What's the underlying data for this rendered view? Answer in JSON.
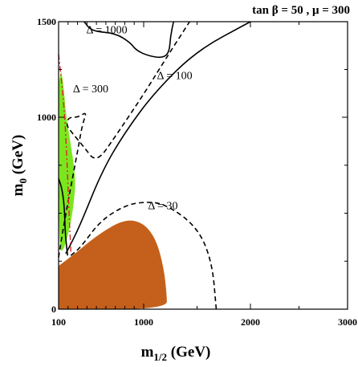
{
  "chart_data": {
    "type": "contour",
    "title": "tan β = 50 ,  μ = 300",
    "xlabel": "m1/2 (GeV)",
    "ylabel": "m0 (GeV)",
    "x_ticks": [
      {
        "value": 100,
        "label": "100"
      },
      {
        "value": 1000,
        "label": "1000"
      },
      {
        "value": 2000,
        "label": "2000"
      },
      {
        "value": 3000,
        "label": "3000"
      }
    ],
    "y_ticks": [
      {
        "value": 0,
        "label": "0"
      },
      {
        "value": 1000,
        "label": "1000"
      },
      {
        "value": 1500,
        "label": "1500"
      }
    ],
    "xlim": [
      100,
      3000
    ],
    "ylim": [
      0,
      1500
    ],
    "x_scale": "log-like (100 at left edge)",
    "regions": [
      {
        "name": "green-region",
        "color": "#7be61e",
        "points": [
          [
            127,
            1240
          ],
          [
            150,
            1180
          ],
          [
            180,
            1000
          ],
          [
            225,
            870
          ],
          [
            265,
            740
          ],
          [
            280,
            640
          ],
          [
            240,
            470
          ],
          [
            155,
            300
          ],
          [
            100,
            310
          ],
          [
            100,
            1180
          ]
        ]
      },
      {
        "name": "orange-region",
        "color": "#c4601b",
        "points": [
          [
            100,
            225
          ],
          [
            300,
            300
          ],
          [
            520,
            390
          ],
          [
            800,
            470
          ],
          [
            1000,
            450
          ],
          [
            1120,
            360
          ],
          [
            1190,
            210
          ],
          [
            1215,
            80
          ],
          [
            1220,
            0
          ],
          [
            100,
            0
          ]
        ]
      }
    ],
    "contours": [
      {
        "label": "Δ = 30",
        "style": "dashed",
        "points": [
          [
            230,
            280
          ],
          [
            330,
            320
          ],
          [
            540,
            460
          ],
          [
            800,
            540
          ],
          [
            1000,
            560
          ],
          [
            1200,
            550
          ],
          [
            1500,
            430
          ],
          [
            1640,
            250
          ],
          [
            1680,
            0
          ]
        ]
      },
      {
        "label": "Δ = 100",
        "style": "solid",
        "points": [
          [
            175,
            290
          ],
          [
            210,
            320
          ],
          [
            330,
            440
          ],
          [
            560,
            720
          ],
          [
            800,
            920
          ],
          [
            1100,
            1130
          ],
          [
            1500,
            1350
          ],
          [
            2000,
            1500
          ]
        ]
      },
      {
        "label": "Δ = 300",
        "style": "dashed",
        "points": [
          [
            100,
            270
          ],
          [
            165,
            470
          ],
          [
            300,
            820
          ],
          [
            350,
            960
          ],
          [
            400,
            1030
          ],
          [
            310,
            1000
          ],
          [
            205,
            1000
          ],
          [
            180,
            960
          ],
          [
            240,
            920
          ],
          [
            360,
            850
          ],
          [
            500,
            760
          ],
          [
            700,
            900
          ],
          [
            1000,
            1120
          ],
          [
            1200,
            1300
          ],
          [
            1430,
            1500
          ]
        ]
      },
      {
        "label": "Δ = 1000",
        "style": "solid",
        "points": [
          [
            370,
            1500
          ],
          [
            450,
            1450
          ],
          [
            700,
            1440
          ],
          [
            860,
            1390
          ],
          [
            920,
            1350
          ],
          [
            1050,
            1320
          ],
          [
            1180,
            1310
          ],
          [
            1240,
            1340
          ],
          [
            1250,
            1420
          ],
          [
            1280,
            1500
          ]
        ]
      },
      {
        "label": "",
        "style": "solid",
        "points": [
          [
            100,
            680
          ],
          [
            135,
            630
          ],
          [
            160,
            540
          ],
          [
            170,
            400
          ],
          [
            185,
            325
          ],
          [
            195,
            280
          ]
        ]
      },
      {
        "label": "",
        "style": "dash-dot",
        "color": "#e0202f",
        "points": [
          [
            100,
            1330
          ],
          [
            120,
            1240
          ],
          [
            150,
            1100
          ],
          [
            175,
            920
          ],
          [
            195,
            700
          ],
          [
            210,
            500
          ],
          [
            230,
            300
          ]
        ]
      }
    ],
    "contour_labels": [
      {
        "text": "Δ = 1000",
        "x": 610,
        "y": 1440
      },
      {
        "text": "Δ = 300",
        "x": 440,
        "y": 1130
      },
      {
        "text": "Δ = 100",
        "x": 1290,
        "y": 1200
      },
      {
        "text": "Δ = 30",
        "x": 1180,
        "y": 520
      }
    ],
    "grid": false
  }
}
